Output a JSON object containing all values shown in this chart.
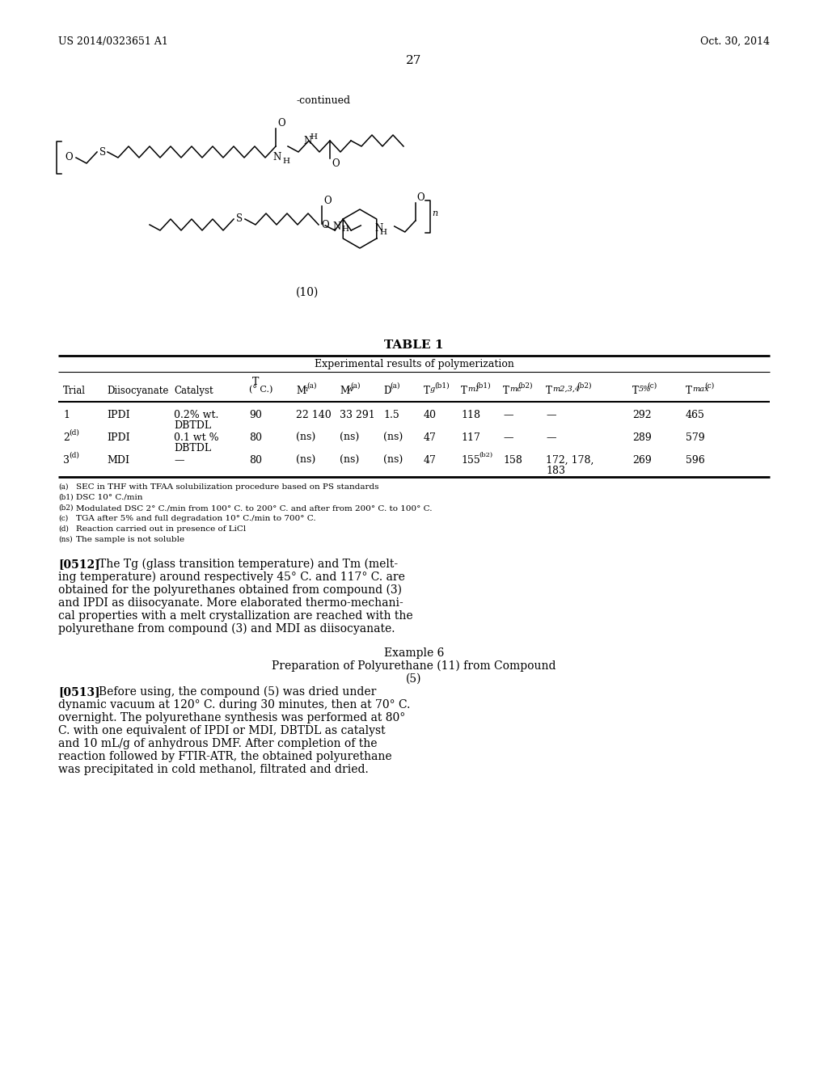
{
  "background_color": "#ffffff",
  "header_left": "US 2014/0323651 A1",
  "header_right": "Oct. 30, 2014",
  "page_number": "27",
  "continued_label": "-continued",
  "compound_label": "(10)",
  "table_title": "TABLE 1",
  "table_subtitle": "Experimental results of polymerization",
  "footnote_a": "(a)SEC in THF with TFAA solubilization procedure based on PS standards",
  "footnote_b1": "(b1)DSC 10° C./min",
  "footnote_b2": "(b2)Modulated DSC 2° C./min from 100° C. to 200° C. and after from 200° C. to 100° C.",
  "footnote_c": "(c)TGA after 5% and full degradation 10° C./min to 700° C.",
  "footnote_d": "(d)Reaction carried out in presence of LiCl",
  "footnote_ns": "(ns)The sample is not soluble",
  "para1_tag": "[0512]",
  "para1_lines": [
    "The Tg (glass transition temperature) and Tm (melt-",
    "ing temperature) around respectively 45° C. and 117° C. are",
    "obtained for the polyurethanes obtained from compound (3)",
    "and IPDI as diisocyanate. More elaborated thermo-mechani-",
    "cal properties with a melt crystallization are reached with the",
    "polyurethane from compound (3) and MDI as diisocyanate."
  ],
  "example_title": "Example 6",
  "example_sub1": "Preparation of Polyurethane (11) from Compound",
  "example_sub2": "(5)",
  "para2_tag": "[0513]",
  "para2_lines": [
    "Before using, the compound (5) was dried under",
    "dynamic vacuum at 120° C. during 30 minutes, then at 70° C.",
    "overnight. The polyurethane synthesis was performed at 80°",
    "C. with one equivalent of IPDI or MDI, DBTDL as catalyst",
    "and 10 mL/g of anhydrous DMF. After completion of the",
    "reaction followed by FTIR-ATR, the obtained polyurethane",
    "was precipitated in cold methanol, filtrated and dried."
  ]
}
